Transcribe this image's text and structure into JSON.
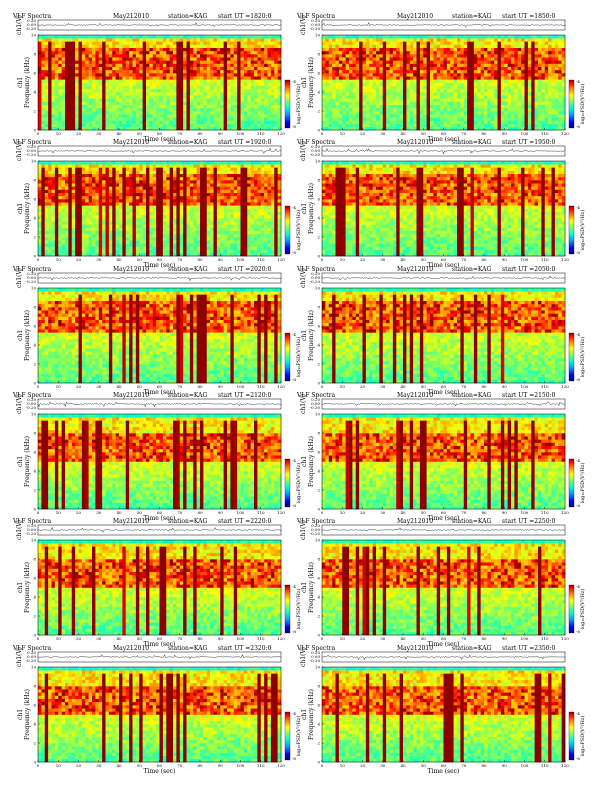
{
  "figure": {
    "title_prefix": "VLF Spectra",
    "date": "May212010",
    "station": "station=KAG",
    "ut_prefix": "start  UT  =",
    "ch1_label": "ch1",
    "ch1_unit": "(V)",
    "ch1_ticks": [
      "0.20",
      "0.00",
      "-0.20"
    ],
    "spectro_ch_label": "ch1",
    "ylabel": "Frequency  (kHz)",
    "xlabel": "Time  (sec)",
    "colorbar_label": "log₁₀PSD(V²/Hz)",
    "colorbar_ticks": [
      "-4",
      "-8"
    ]
  },
  "chart_data": [
    {
      "type": "heatmap",
      "start_ut": "1820:0",
      "title": "VLF Spectra  May212010  station=KAG  start UT =1820:0",
      "xlabel": "Time (sec)",
      "ylabel": "Frequency (kHz)",
      "xlim": [
        0,
        120
      ],
      "ylim": [
        0,
        10
      ],
      "x_ticks": [
        0,
        10,
        20,
        30,
        40,
        50,
        60,
        70,
        80,
        90,
        100,
        110,
        120
      ],
      "y_ticks": [
        0,
        2,
        4,
        6,
        8,
        10
      ],
      "colormap": [
        "#00008c",
        "#0000ff",
        "#0060ff",
        "#00c8ff",
        "#50ffa0",
        "#c8ff30",
        "#ffe000",
        "#ff8000",
        "#ff0000",
        "#8c0000"
      ],
      "dominant_band_khz": [
        5.5,
        8.5
      ],
      "cutoff_khz": 9.5
    },
    {
      "type": "heatmap",
      "start_ut": "1850:0",
      "title": "VLF Spectra  May212010  station=KAG  start UT =1850:0",
      "xlabel": "Time (sec)",
      "ylabel": "Frequency (kHz)",
      "xlim": [
        0,
        120
      ],
      "ylim": [
        0,
        10
      ],
      "x_ticks": [
        0,
        10,
        20,
        30,
        40,
        50,
        60,
        70,
        80,
        90,
        100,
        110,
        120
      ],
      "y_ticks": [
        0,
        2,
        4,
        6,
        8,
        10
      ],
      "dominant_band_khz": [
        5.5,
        8.5
      ],
      "cutoff_khz": 9.5
    },
    {
      "type": "heatmap",
      "start_ut": "1920:0",
      "title": "VLF Spectra  May212010  station=KAG  start UT =1920:0",
      "xlabel": "Time (sec)",
      "ylabel": "Frequency (kHz)",
      "xlim": [
        0,
        120
      ],
      "ylim": [
        0,
        10
      ],
      "x_ticks": [
        0,
        10,
        20,
        30,
        40,
        50,
        60,
        70,
        80,
        90,
        100,
        110,
        120
      ],
      "y_ticks": [
        0,
        2,
        4,
        6,
        8,
        10
      ],
      "dominant_band_khz": [
        5.5,
        8.5
      ],
      "cutoff_khz": 9.5
    },
    {
      "type": "heatmap",
      "start_ut": "1950:0",
      "title": "VLF Spectra  May212010  station=KAG  start UT =1950:0",
      "xlabel": "Time (sec)",
      "ylabel": "Frequency (kHz)",
      "xlim": [
        0,
        120
      ],
      "ylim": [
        0,
        10
      ],
      "x_ticks": [
        0,
        10,
        20,
        30,
        40,
        50,
        60,
        70,
        80,
        90,
        100,
        110,
        120
      ],
      "y_ticks": [
        0,
        2,
        4,
        6,
        8,
        10
      ],
      "dominant_band_khz": [
        5.5,
        8.5
      ],
      "cutoff_khz": 9.5
    },
    {
      "type": "heatmap",
      "start_ut": "2020:0",
      "title": "VLF Spectra  May212010  station=KAG  start UT =2020:0",
      "xlabel": "Time (sec)",
      "ylabel": "Frequency (kHz)",
      "xlim": [
        0,
        120
      ],
      "ylim": [
        0,
        10
      ],
      "x_ticks": [
        0,
        10,
        20,
        30,
        40,
        50,
        60,
        70,
        80,
        90,
        100,
        110,
        120
      ],
      "y_ticks": [
        0,
        2,
        4,
        6,
        8,
        10
      ],
      "dominant_band_khz": [
        5.5,
        8.5
      ],
      "cutoff_khz": 9.5
    },
    {
      "type": "heatmap",
      "start_ut": "2050:0",
      "title": "VLF Spectra  May212010  station=KAG  start UT =2050:0",
      "xlabel": "Time (sec)",
      "ylabel": "Frequency (kHz)",
      "xlim": [
        0,
        120
      ],
      "ylim": [
        0,
        10
      ],
      "x_ticks": [
        0,
        10,
        20,
        30,
        40,
        50,
        60,
        70,
        80,
        90,
        100,
        110,
        120
      ],
      "y_ticks": [
        0,
        2,
        4,
        6,
        8,
        10
      ],
      "dominant_band_khz": [
        5.5,
        8.5
      ],
      "cutoff_khz": 9.5
    },
    {
      "type": "heatmap",
      "start_ut": "2120:0",
      "title": "VLF Spectra  May212010  station=KAG  start UT =2120:0",
      "xlabel": "Time (sec)",
      "ylabel": "Frequency (kHz)",
      "xlim": [
        0,
        120
      ],
      "ylim": [
        0,
        10
      ],
      "x_ticks": [
        0,
        10,
        20,
        30,
        40,
        50,
        60,
        70,
        80,
        90,
        100,
        110,
        120
      ],
      "y_ticks": [
        0,
        2,
        4,
        6,
        8,
        10
      ],
      "dominant_band_khz": [
        5.0,
        8.0
      ],
      "cutoff_khz": 9.5
    },
    {
      "type": "heatmap",
      "start_ut": "2150:0",
      "title": "VLF Spectra  May212010  station=KAG  start UT =2150:0",
      "xlabel": "Time (sec)",
      "ylabel": "Frequency (kHz)",
      "xlim": [
        0,
        120
      ],
      "ylim": [
        0,
        10
      ],
      "x_ticks": [
        0,
        10,
        20,
        30,
        40,
        50,
        60,
        70,
        80,
        90,
        100,
        110,
        120
      ],
      "y_ticks": [
        0,
        2,
        4,
        6,
        8,
        10
      ],
      "dominant_band_khz": [
        5.0,
        8.0
      ],
      "cutoff_khz": 9.5
    },
    {
      "type": "heatmap",
      "start_ut": "2220:0",
      "title": "VLF Spectra  May212010  station=KAG  start UT =2220:0",
      "xlabel": "Time (sec)",
      "ylabel": "Frequency (kHz)",
      "xlim": [
        0,
        120
      ],
      "ylim": [
        0,
        10
      ],
      "x_ticks": [
        0,
        10,
        20,
        30,
        40,
        50,
        60,
        70,
        80,
        90,
        100,
        110,
        120
      ],
      "y_ticks": [
        0,
        2,
        4,
        6,
        8,
        10
      ],
      "dominant_band_khz": [
        5.0,
        8.0
      ],
      "cutoff_khz": 9.5
    },
    {
      "type": "heatmap",
      "start_ut": "2250:0",
      "title": "VLF Spectra  May212010  station=KAG  start UT =2250:0",
      "xlabel": "Time (sec)",
      "ylabel": "Frequency (kHz)",
      "xlim": [
        0,
        120
      ],
      "ylim": [
        0,
        10
      ],
      "x_ticks": [
        0,
        10,
        20,
        30,
        40,
        50,
        60,
        70,
        80,
        90,
        100,
        110,
        120
      ],
      "y_ticks": [
        0,
        2,
        4,
        6,
        8,
        10
      ],
      "dominant_band_khz": [
        5.0,
        8.0
      ],
      "cutoff_khz": 9.5
    },
    {
      "type": "heatmap",
      "start_ut": "2320:0",
      "title": "VLF Spectra  May212010  station=KAG  start UT =2320:0",
      "xlabel": "Time (sec)",
      "ylabel": "Frequency (kHz)",
      "xlim": [
        0,
        120
      ],
      "ylim": [
        0,
        10
      ],
      "x_ticks": [
        0,
        10,
        20,
        30,
        40,
        50,
        60,
        70,
        80,
        90,
        100,
        110,
        120
      ],
      "y_ticks": [
        0,
        2,
        4,
        6,
        8,
        10
      ],
      "dominant_band_khz": [
        5.0,
        8.0
      ],
      "cutoff_khz": 9.5
    },
    {
      "type": "heatmap",
      "start_ut": "2350:0",
      "title": "VLF Spectra  May212010  station=KAG  start UT =2350:0",
      "xlabel": "Time (sec)",
      "ylabel": "Frequency (kHz)",
      "xlim": [
        0,
        120
      ],
      "ylim": [
        0,
        10
      ],
      "x_ticks": [
        0,
        10,
        20,
        30,
        40,
        50,
        60,
        70,
        80,
        90,
        100,
        110,
        120
      ],
      "y_ticks": [
        0,
        2,
        4,
        6,
        8,
        10
      ],
      "dominant_band_khz": [
        5.0,
        8.0
      ],
      "cutoff_khz": 9.5
    }
  ]
}
